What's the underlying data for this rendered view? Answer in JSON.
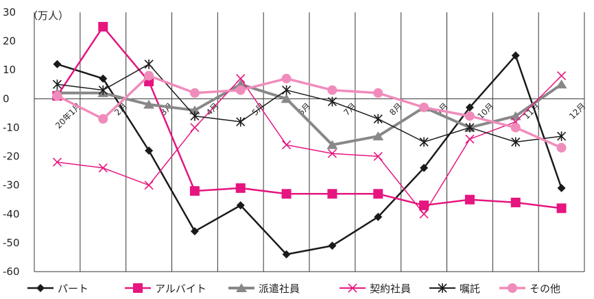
{
  "chart_data": {
    "type": "line",
    "unit_label": "（万人）",
    "categories": [
      "20年1月",
      "2月",
      "3月",
      "4月",
      "5月",
      "6月",
      "7月",
      "8月",
      "9月",
      "10月",
      "11月",
      "12月"
    ],
    "ylim": [
      -60,
      30
    ],
    "yticks": [
      30,
      20,
      10,
      0,
      -10,
      -20,
      -30,
      -40,
      -50,
      -60
    ],
    "grid": "vertical",
    "legend_position": "bottom",
    "series": [
      {
        "name": "パート",
        "color": "#1a1a1a",
        "marker": "diamond",
        "width": 2.5,
        "values": [
          12,
          7,
          -18,
          -46,
          -37,
          -54,
          -51,
          -41,
          -24,
          -3,
          15,
          -31
        ]
      },
      {
        "name": "アルバイト",
        "color": "#e6157f",
        "marker": "square",
        "width": 2.5,
        "values": [
          1,
          25,
          6,
          -32,
          -31,
          -33,
          -33,
          -33,
          -37,
          -35,
          -36,
          -38
        ]
      },
      {
        "name": "派遣社員",
        "color": "#888888",
        "marker": "triangle",
        "width": 4,
        "values": [
          2,
          2,
          -2,
          -4,
          5,
          0,
          -16,
          -13,
          -3,
          -10,
          -6,
          5
        ]
      },
      {
        "name": "契約社員",
        "color": "#e6157f",
        "marker": "x",
        "width": 1.5,
        "values": [
          -22,
          -24,
          -30,
          -10,
          7,
          -16,
          -19,
          -20,
          -40,
          -14,
          -8,
          8
        ]
      },
      {
        "name": "嘱託",
        "color": "#1a1a1a",
        "marker": "asterisk",
        "width": 1.5,
        "values": [
          5,
          3,
          12,
          -6,
          -8,
          3,
          -1,
          -7,
          -15,
          -10,
          -15,
          -13
        ]
      },
      {
        "name": "その他",
        "color": "#f08cbb",
        "marker": "circle",
        "width": 3.5,
        "values": [
          1,
          -7,
          8,
          2,
          3,
          7,
          3,
          2,
          -3,
          -6,
          -10,
          -17
        ]
      }
    ]
  }
}
